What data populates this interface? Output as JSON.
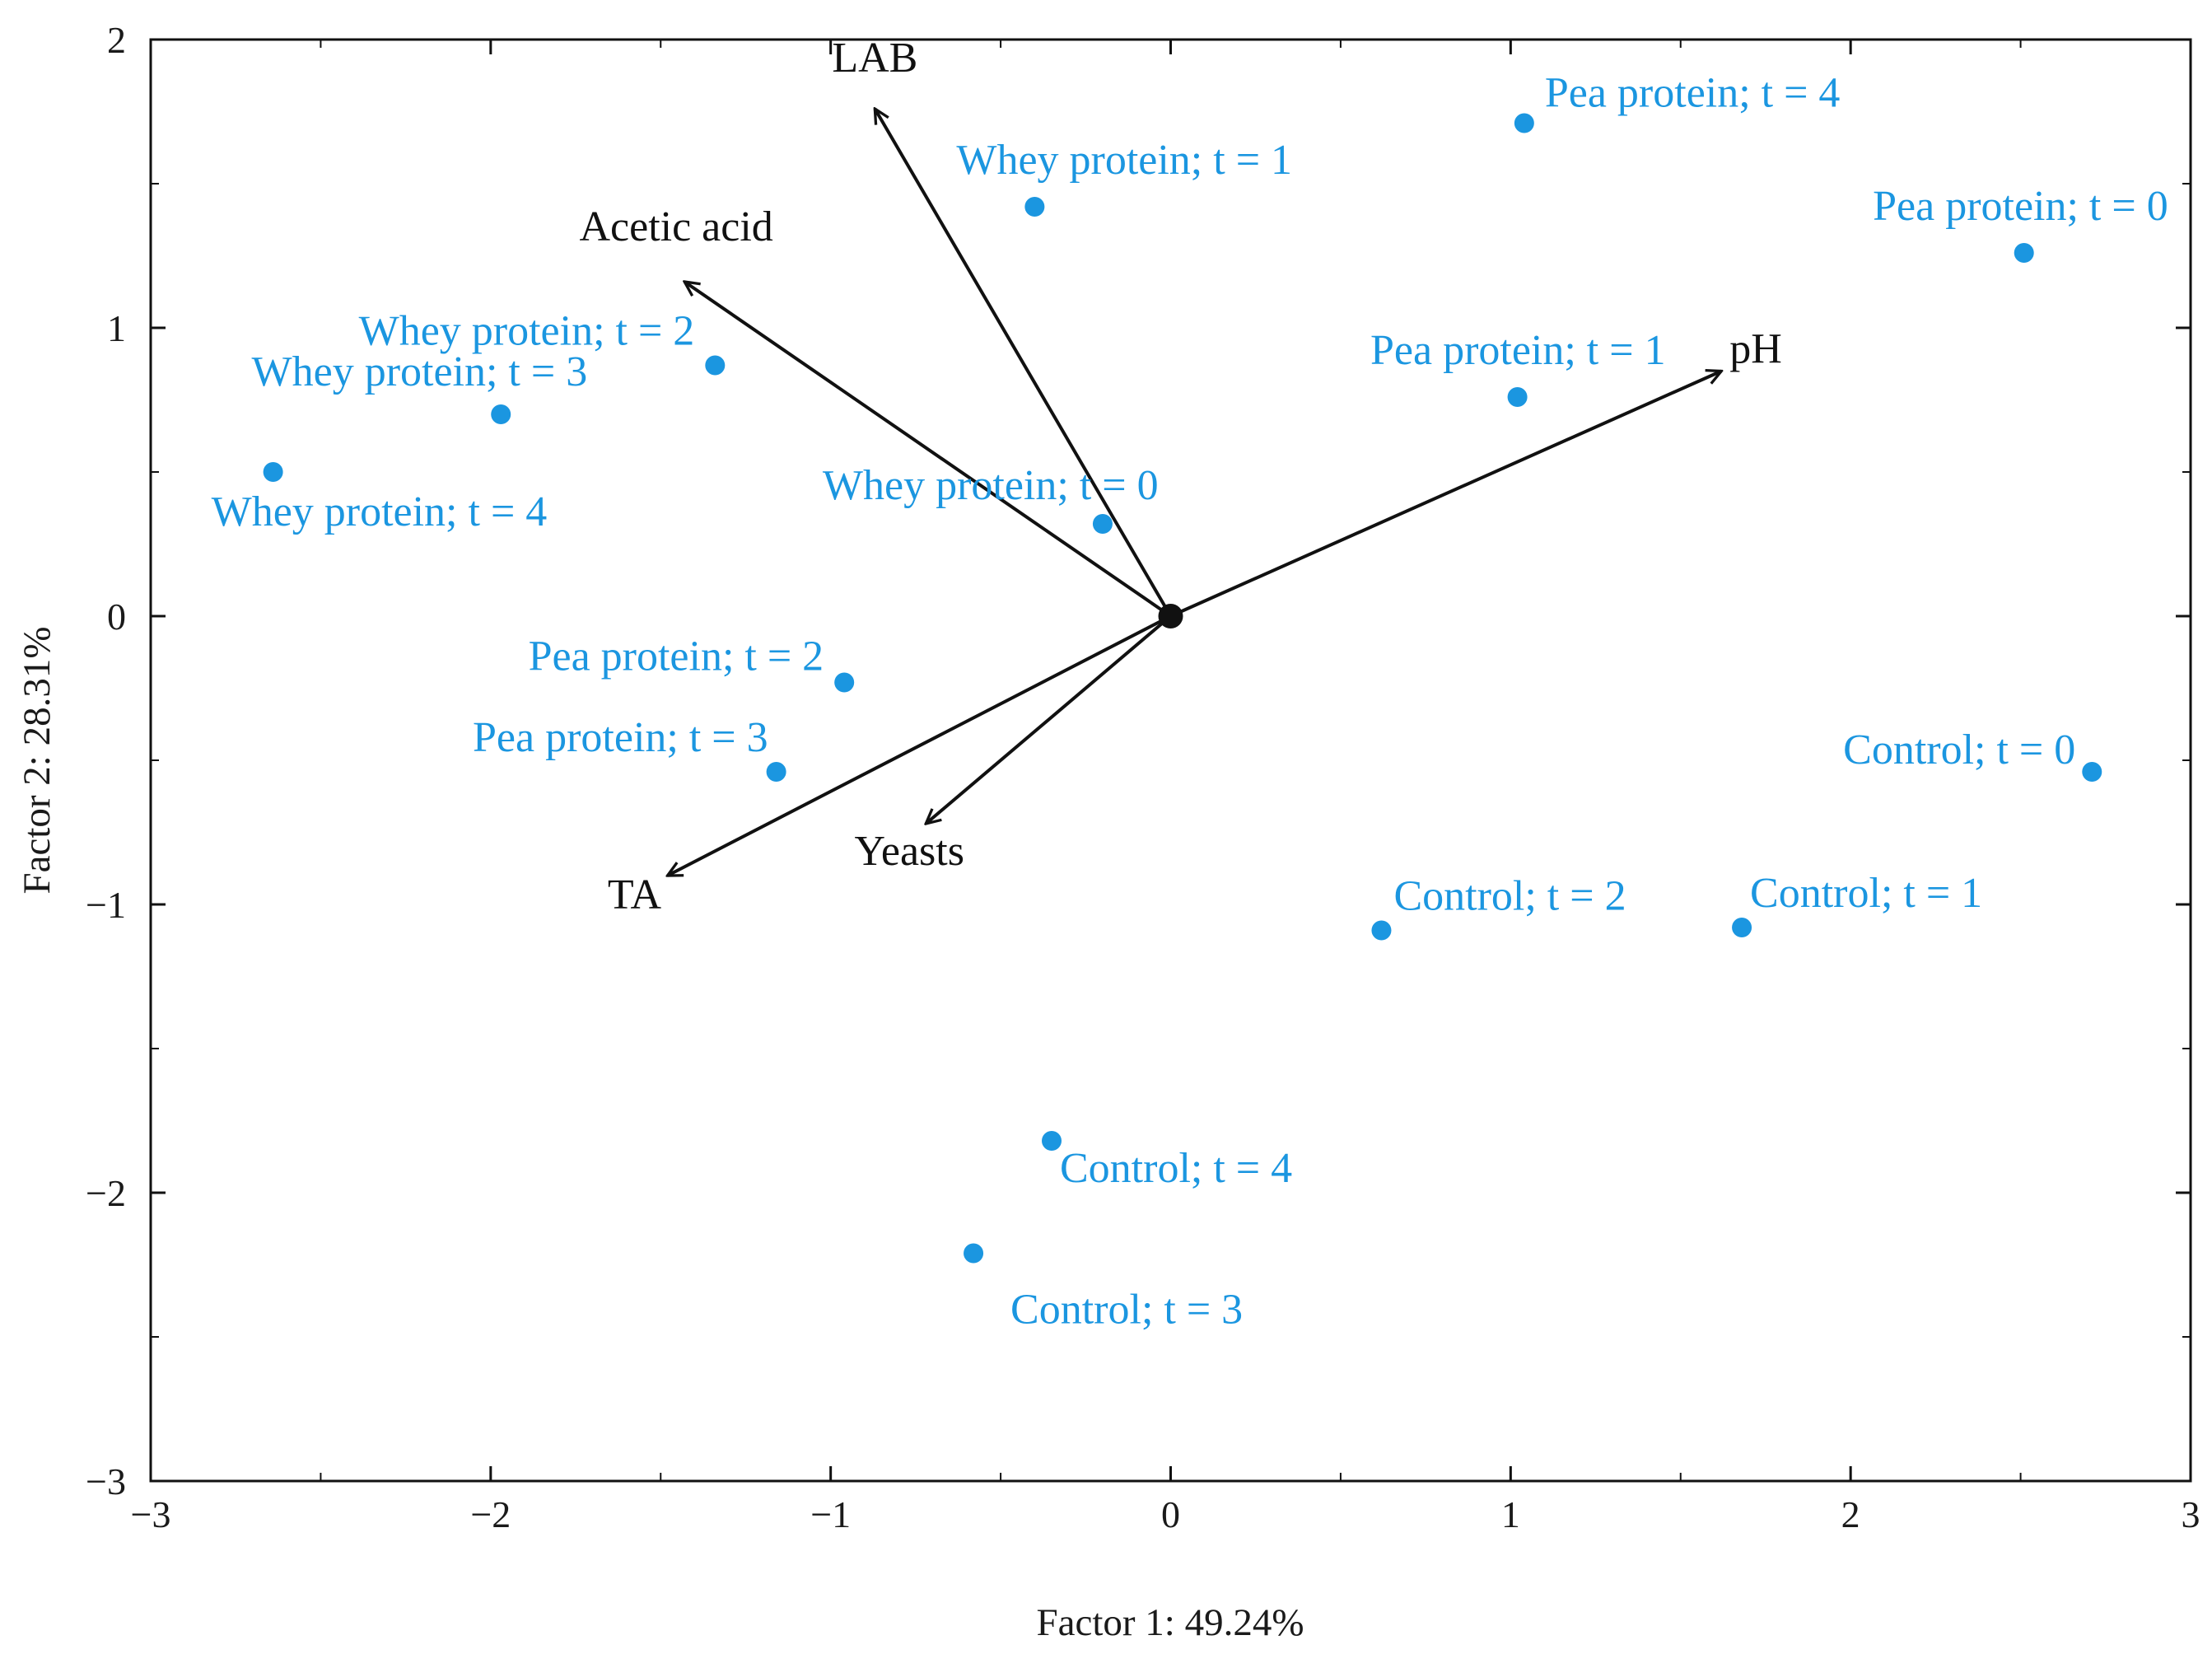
{
  "chart_data": {
    "type": "scatter",
    "subtype": "pca-biplot",
    "xlabel": "Factor 1: 49.24%",
    "ylabel": "Factor 2: 28.31%",
    "xlim": [
      -3,
      3
    ],
    "ylim": [
      -3,
      2
    ],
    "xticks": [
      -3,
      -2,
      -1,
      0,
      1,
      2,
      3
    ],
    "yticks": [
      -3,
      -2,
      -1,
      0,
      1,
      2
    ],
    "xtick_labels": [
      "−3",
      "−2",
      "−1",
      "0",
      "1",
      "2",
      "3"
    ],
    "ytick_labels": [
      "−3",
      "−2",
      "−1",
      "0",
      "1",
      "2"
    ],
    "grid": false,
    "point_color": "#1b96e0",
    "arrow_color": "#111111",
    "points": [
      {
        "label": "Pea protein; t = 4",
        "x": 1.04,
        "y": 1.71
      },
      {
        "label": "Whey protein; t = 1",
        "x": -0.4,
        "y": 1.42
      },
      {
        "label": "Pea protein; t = 0",
        "x": 2.51,
        "y": 1.26
      },
      {
        "label": "Whey protein; t = 2",
        "x": -1.34,
        "y": 0.87
      },
      {
        "label": "Whey protein; t = 3",
        "x": -1.97,
        "y": 0.7
      },
      {
        "label": "Pea protein; t = 1",
        "x": 1.02,
        "y": 0.76
      },
      {
        "label": "Whey protein; t = 4",
        "x": -2.64,
        "y": 0.5
      },
      {
        "label": "Whey protein; t = 0",
        "x": -0.2,
        "y": 0.32
      },
      {
        "label": "Pea protein; t = 2",
        "x": -0.96,
        "y": -0.23
      },
      {
        "label": "Pea protein; t = 3",
        "x": -1.16,
        "y": -0.54
      },
      {
        "label": "Control; t = 0",
        "x": 2.71,
        "y": -0.54
      },
      {
        "label": "Control; t = 2",
        "x": 0.62,
        "y": -1.09
      },
      {
        "label": "Control; t = 1",
        "x": 1.68,
        "y": -1.08
      },
      {
        "label": "Control; t = 4",
        "x": -0.35,
        "y": -1.82
      },
      {
        "label": "Control; t = 3",
        "x": -0.58,
        "y": -2.21
      }
    ],
    "vectors": [
      {
        "label": "LAB",
        "x": -0.87,
        "y": 1.76
      },
      {
        "label": "Acetic acid",
        "x": -1.43,
        "y": 1.16
      },
      {
        "label": "pH",
        "x": 1.62,
        "y": 0.85
      },
      {
        "label": "Yeasts",
        "x": -0.72,
        "y": -0.72
      },
      {
        "label": "TA",
        "x": -1.48,
        "y": -0.9
      }
    ]
  }
}
